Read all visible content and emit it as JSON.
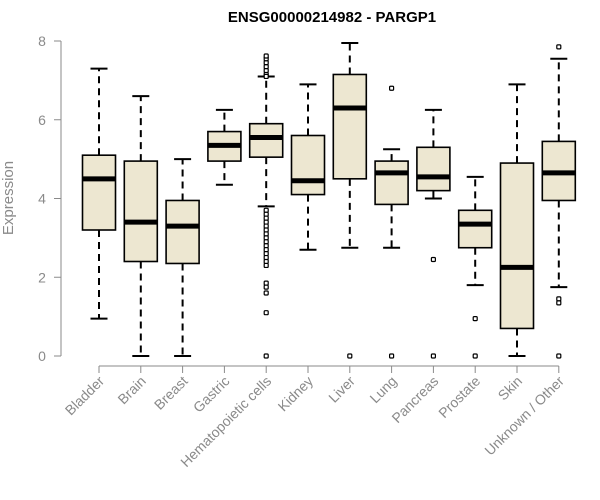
{
  "chart_data": {
    "type": "boxplot",
    "title": "ENSG00000214982 - PARGP1",
    "xlabel": "",
    "ylabel": "Expression",
    "ylim": [
      0,
      8
    ],
    "yticks": [
      0,
      2,
      4,
      6,
      8
    ],
    "colors": {
      "box_fill": "#ede7d1",
      "box_stroke": "#000000",
      "axis": "#8a8a8a"
    },
    "categories": [
      "Bladder",
      "Brain",
      "Breast",
      "Gastric",
      "Hematopoietic cells",
      "Kidney",
      "Liver",
      "Lung",
      "Pancreas",
      "Prostate",
      "Skin",
      "Unknown / Other"
    ],
    "boxes": [
      {
        "name": "Bladder",
        "whisker_low": 0.95,
        "q1": 3.2,
        "median": 4.5,
        "q3": 5.1,
        "whisker_high": 7.3,
        "outliers": []
      },
      {
        "name": "Brain",
        "whisker_low": 0.0,
        "q1": 2.4,
        "median": 3.4,
        "q3": 4.95,
        "whisker_high": 6.6,
        "outliers": []
      },
      {
        "name": "Breast",
        "whisker_low": 0.0,
        "q1": 2.35,
        "median": 3.3,
        "q3": 3.95,
        "whisker_high": 5.0,
        "outliers": []
      },
      {
        "name": "Gastric",
        "whisker_low": 4.35,
        "q1": 4.95,
        "median": 5.35,
        "q3": 5.7,
        "whisker_high": 6.25,
        "outliers": []
      },
      {
        "name": "Hematopoietic cells",
        "whisker_low": 3.8,
        "q1": 5.05,
        "median": 5.55,
        "q3": 5.9,
        "whisker_high": 7.1,
        "outliers": [
          7.15,
          7.25,
          7.35,
          7.45,
          7.55,
          7.62,
          7.1,
          3.7,
          3.6,
          3.5,
          3.4,
          3.3,
          3.2,
          3.1,
          3.0,
          2.9,
          2.8,
          2.7,
          2.6,
          2.5,
          2.4,
          2.3,
          1.85,
          1.75,
          1.6,
          1.1,
          0.0
        ]
      },
      {
        "name": "Kidney",
        "whisker_low": 2.7,
        "q1": 4.1,
        "median": 4.45,
        "q3": 5.6,
        "whisker_high": 6.9,
        "outliers": []
      },
      {
        "name": "Liver",
        "whisker_low": 2.75,
        "q1": 4.5,
        "median": 6.3,
        "q3": 7.15,
        "whisker_high": 7.95,
        "outliers": [
          0.0
        ]
      },
      {
        "name": "Lung",
        "whisker_low": 2.75,
        "q1": 3.85,
        "median": 4.65,
        "q3": 4.95,
        "whisker_high": 5.25,
        "outliers": [
          6.8,
          0.0
        ]
      },
      {
        "name": "Pancreas",
        "whisker_low": 4.0,
        "q1": 4.2,
        "median": 4.55,
        "q3": 5.3,
        "whisker_high": 6.25,
        "outliers": [
          2.45,
          0.0
        ]
      },
      {
        "name": "Prostate",
        "whisker_low": 1.8,
        "q1": 2.75,
        "median": 3.35,
        "q3": 3.7,
        "whisker_high": 4.55,
        "outliers": [
          0.95,
          0.0
        ]
      },
      {
        "name": "Skin",
        "whisker_low": 0.0,
        "q1": 0.7,
        "median": 2.25,
        "q3": 4.9,
        "whisker_high": 6.9,
        "outliers": []
      },
      {
        "name": "Unknown / Other",
        "whisker_low": 1.75,
        "q1": 3.95,
        "median": 4.65,
        "q3": 5.45,
        "whisker_high": 7.55,
        "outliers": [
          7.85,
          1.45,
          1.35,
          0.0
        ]
      }
    ]
  }
}
